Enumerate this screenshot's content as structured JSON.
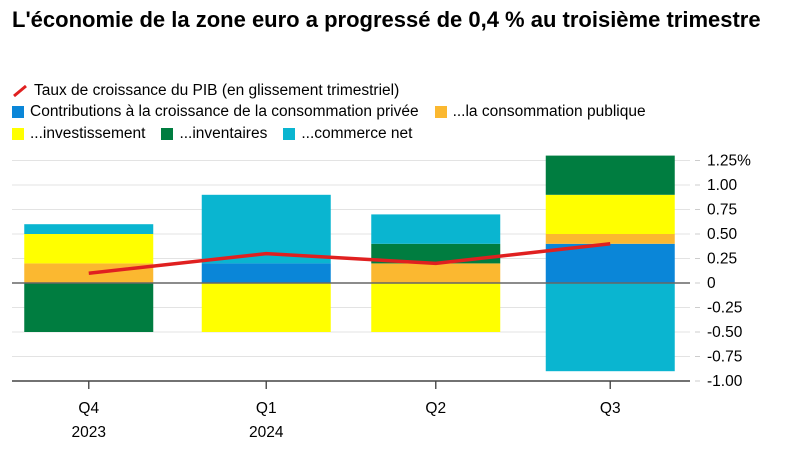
{
  "chart_data": {
    "type": "bar",
    "stacked": true,
    "title": "L'économie de la zone euro a progressé de 0,4 % au troisième trimestre",
    "categories": [
      "Q4\n2023",
      "Q1\n2024",
      "Q2",
      "Q3"
    ],
    "category_labels": [
      [
        "Q4",
        "2023"
      ],
      [
        "Q1",
        "2024"
      ],
      [
        "Q2",
        ""
      ],
      [
        "Q3",
        ""
      ]
    ],
    "ylim": [
      -1.0,
      1.25
    ],
    "yticks": [
      1.25,
      1.0,
      0.75,
      0.5,
      0.25,
      0,
      -0.25,
      -0.5,
      -0.75,
      -1.0
    ],
    "ytick_labels": [
      "1.25%",
      "1.00",
      "0.75",
      "0.50",
      "0.25",
      "0",
      "-0.25",
      "-0.50",
      "-0.75",
      "-1.00"
    ],
    "grid": true,
    "legend_placement": "top",
    "line": {
      "name": "Taux de croissance du PIB (en glissement trimestriel)",
      "color": "#e02020",
      "values": [
        0.1,
        0.3,
        0.2,
        0.4
      ]
    },
    "series": [
      {
        "name": "Contributions à la croissance de la consommation privée",
        "color": "#0a86d8",
        "values": [
          0.0,
          0.2,
          0.0,
          0.4
        ]
      },
      {
        "name": "...la consommation publique",
        "color": "#fbb830",
        "values": [
          0.2,
          0.0,
          0.2,
          0.1
        ]
      },
      {
        "name": "...investissement",
        "color": "#ffff00",
        "values": [
          0.3,
          -0.5,
          -0.5,
          0.4
        ]
      },
      {
        "name": "...inventaires",
        "color": "#007d40",
        "values": [
          -0.5,
          0.0,
          0.2,
          0.4
        ]
      },
      {
        "name": "...commerce net",
        "color": "#0ab5d0",
        "values": [
          0.1,
          0.7,
          0.3,
          -0.9
        ]
      }
    ]
  }
}
